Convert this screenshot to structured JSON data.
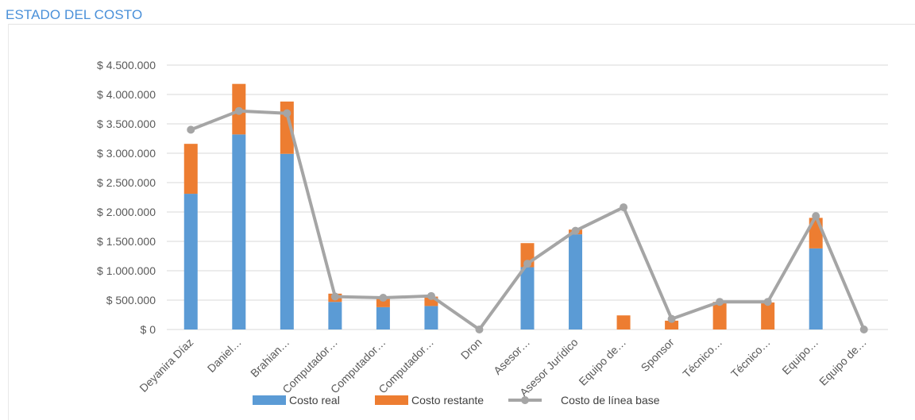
{
  "title": "ESTADO DEL COSTO",
  "colors": {
    "title": "#4a90d9",
    "costo_real": "#5b9bd5",
    "costo_restante": "#ed7d31",
    "linea_base": "#a5a5a5"
  },
  "chart_data": {
    "type": "bar",
    "stacked": true,
    "categories": [
      "Deyanira Díaz",
      "Daniel…",
      "Brahian…",
      "Computador…",
      "Computador…",
      "Computador…",
      "Dron",
      "Asesor…",
      "Asesor Jurídico",
      "Equipo de…",
      "Sponsor",
      "Técnico…",
      "Técnico…",
      "Equipo…",
      "Equipo de…"
    ],
    "y_tick_labels": [
      "$ 0",
      "$ 500.000",
      "$ 1.000.000",
      "$ 1.500.000",
      "$ 2.000.000",
      "$ 2.500.000",
      "$ 3.000.000",
      "$ 3.500.000",
      "$ 4.000.000",
      "$ 4.500.000"
    ],
    "ylim": [
      0,
      4500000
    ],
    "grid": true,
    "legend_position": "bottom",
    "series": [
      {
        "name": "Costo real",
        "type": "bar",
        "values": [
          2310000,
          3320000,
          2990000,
          470000,
          380000,
          400000,
          0,
          1060000,
          1620000,
          0,
          0,
          0,
          0,
          1380000,
          0
        ]
      },
      {
        "name": "Costo restante",
        "type": "bar",
        "values": [
          850000,
          860000,
          890000,
          140000,
          170000,
          160000,
          0,
          410000,
          80000,
          240000,
          150000,
          470000,
          460000,
          520000,
          0
        ]
      },
      {
        "name": "Costo de línea base",
        "type": "line",
        "values": [
          3400000,
          3720000,
          3680000,
          560000,
          540000,
          570000,
          0,
          1120000,
          1680000,
          2080000,
          180000,
          470000,
          470000,
          1930000,
          0
        ]
      }
    ]
  }
}
